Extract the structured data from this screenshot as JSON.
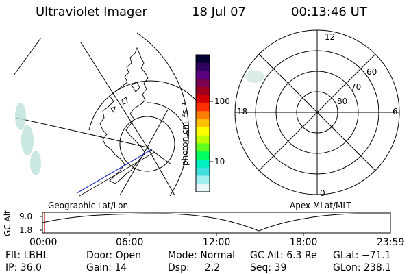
{
  "header": {
    "title": "Ultraviolet Imager",
    "date": "18 Jul 07",
    "time": "00:13:46 UT"
  },
  "left_map": {
    "caption": "Geographic Lat/Lon"
  },
  "right_map": {
    "caption": "Apex MLat/MLT",
    "mlt_labels": {
      "top": "12",
      "left": "18",
      "right": "6",
      "bottom": "0"
    },
    "lat_labels": [
      "60",
      "70",
      "80"
    ]
  },
  "colorbar": {
    "unit": "photon cm⁻²s⁻¹",
    "ticks": [
      "100",
      "10"
    ],
    "colors": [
      "#000030",
      "#300060",
      "#5a0080",
      "#7a0050",
      "#a00020",
      "#d00000",
      "#ff3000",
      "#ff8000",
      "#ffc000",
      "#ffff00",
      "#c0ff00",
      "#60ff20",
      "#00ff60",
      "#00f0c0",
      "#40e0e0",
      "#a0f0f0",
      "#e8f8f8"
    ]
  },
  "timeline": {
    "ylabel": "GC Alt",
    "yticks": [
      "9.0",
      "1.8"
    ],
    "xticks": [
      "00:00",
      "06:00",
      "12:00",
      "18:00",
      "23:59"
    ]
  },
  "info": {
    "flt": "Flt: LBHL",
    "ip": "IP: 36.0",
    "door": "Door: Open",
    "gain": "Gain: 14",
    "mode": "Mode: Normal",
    "dsp": "Dsp:     2.2",
    "gcalt": "GC Alt: 6.3 Re",
    "seq": "Seq: 39",
    "glat": "GLat: −71.1",
    "glon": "GLon: 238.1"
  }
}
